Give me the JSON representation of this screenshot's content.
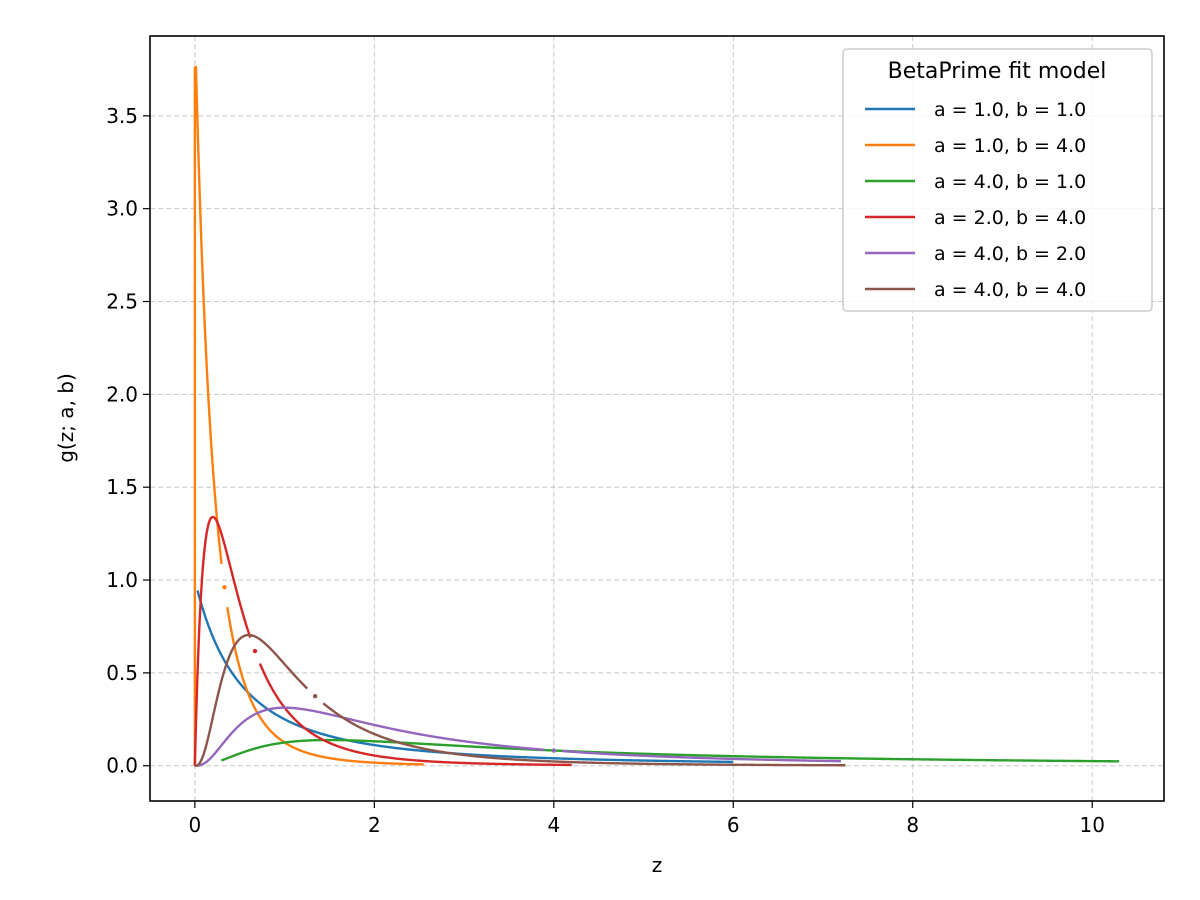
{
  "chart_data": {
    "type": "line",
    "title": "",
    "xlabel": "z",
    "ylabel": "g(z; a, b)",
    "xlim": [
      -0.5,
      10.8
    ],
    "ylim": [
      -0.19,
      3.93
    ],
    "xticks": [
      0,
      2,
      4,
      6,
      8,
      10
    ],
    "xtick_labels": [
      "0",
      "2",
      "4",
      "6",
      "8",
      "10"
    ],
    "yticks": [
      0.0,
      0.5,
      1.0,
      1.5,
      2.0,
      2.5,
      3.0,
      3.5
    ],
    "ytick_labels": [
      "0.0",
      "0.5",
      "1.0",
      "1.5",
      "2.0",
      "2.5",
      "3.0",
      "3.5"
    ],
    "grid": true,
    "legend": {
      "title": "BetaPrime fit model",
      "position": "upper right"
    },
    "series": [
      {
        "name": "a = 1.0, b = 1.0",
        "a": 1.0,
        "b": 1.0,
        "color": "#1f77b4",
        "x_start": 0.03,
        "x_end": 6.0,
        "marker_x": null,
        "points": [
          [
            0.03,
            0.94
          ],
          [
            0.5,
            0.44
          ],
          [
            1.0,
            0.25
          ],
          [
            2.0,
            0.11
          ],
          [
            4.0,
            0.04
          ],
          [
            6.0,
            0.02
          ]
        ]
      },
      {
        "name": "a = 1.0, b = 4.0",
        "a": 1.0,
        "b": 4.0,
        "color": "#ff7f0e",
        "x_start": 0.0,
        "x_end": 2.55,
        "marker_x": 0.33,
        "points": [
          [
            0.0,
            0.0
          ],
          [
            0.012,
            3.76
          ],
          [
            0.33,
            0.95
          ],
          [
            1.0,
            0.13
          ],
          [
            2.0,
            0.02
          ],
          [
            2.55,
            0.01
          ]
        ]
      },
      {
        "name": "a = 4.0, b = 1.0",
        "a": 4.0,
        "b": 1.0,
        "color": "#2ca02c",
        "x_start": 0.3,
        "x_end": 10.3,
        "marker_x": null,
        "points": [
          [
            0.3,
            0.03
          ],
          [
            1.0,
            0.13
          ],
          [
            1.5,
            0.14
          ],
          [
            4.0,
            0.08
          ],
          [
            8.0,
            0.03
          ],
          [
            10.3,
            0.02
          ]
        ]
      },
      {
        "name": "a = 2.0, b = 4.0",
        "a": 2.0,
        "b": 4.0,
        "color": "#d62728",
        "x_start": 0.0,
        "x_end": 4.2,
        "marker_x": 0.67,
        "points": [
          [
            0.0,
            0.0
          ],
          [
            0.2,
            1.34
          ],
          [
            0.67,
            0.62
          ],
          [
            1.5,
            0.12
          ],
          [
            3.0,
            0.01
          ],
          [
            4.2,
            0.01
          ]
        ]
      },
      {
        "name": "a = 4.0, b = 2.0",
        "a": 4.0,
        "b": 2.0,
        "color": "#9467bd",
        "x_start": 0.0,
        "x_end": 7.2,
        "marker_x": 4.0,
        "points": [
          [
            0.0,
            0.0
          ],
          [
            0.5,
            0.2
          ],
          [
            1.0,
            0.31
          ],
          [
            2.0,
            0.2
          ],
          [
            4.0,
            0.08
          ],
          [
            7.2,
            0.02
          ]
        ]
      },
      {
        "name": "a = 4.0, b = 4.0",
        "a": 4.0,
        "b": 4.0,
        "color": "#8c564b",
        "x_start": 0.0,
        "x_end": 7.25,
        "marker_x": 1.34,
        "points": [
          [
            0.0,
            0.0
          ],
          [
            0.6,
            0.7
          ],
          [
            1.34,
            0.38
          ],
          [
            2.0,
            0.17
          ],
          [
            4.0,
            0.02
          ],
          [
            7.25,
            0.0
          ]
        ]
      }
    ]
  }
}
